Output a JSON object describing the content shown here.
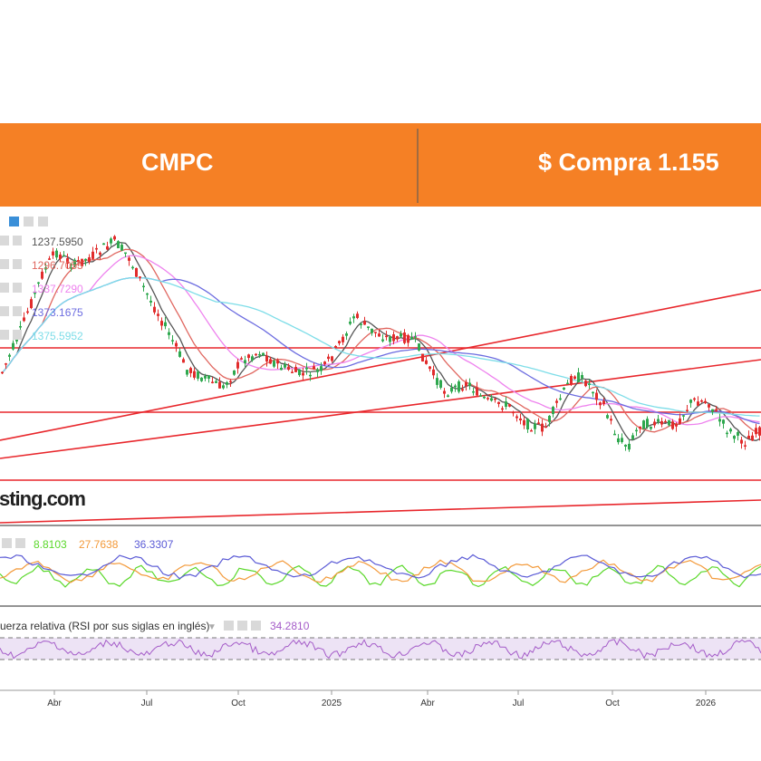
{
  "banner": {
    "title": "CMPC",
    "price": "$ Compra 1.155"
  },
  "watermark": "sting.com",
  "colors": {
    "banner": "#F58025",
    "up": "#2FA84F",
    "down": "#E12C2C",
    "ma1": "#555555",
    "ma2": "#E0665F",
    "ma3": "#EE82EE",
    "ma4": "#6C6CE0",
    "ma5": "#7DDDE8",
    "level": "#E8272C",
    "adx": "#5AD82A",
    "di_plus": "#F39A3A",
    "di_minus": "#5B5BD6",
    "rsi": "#A45BC8"
  },
  "chart_data": [
    {
      "type": "candlestick",
      "title": "",
      "indicator_values": [
        "1237.5950",
        "1296.7055",
        "1337.7290",
        "1373.1675",
        "1375.5952"
      ],
      "xlabel": "",
      "ylabel": "",
      "x_ticks": [
        "Abr",
        "Jul",
        "Oct",
        "2025",
        "Abr",
        "Jul",
        "Oct",
        "2026"
      ],
      "grid": false,
      "notes": "Price candles with five moving averages, horizontal support/resistance lines and rising trendlines"
    },
    {
      "type": "line",
      "title": "",
      "series": [
        {
          "name": "",
          "value_label": "8.8103"
        },
        {
          "name": "",
          "value_label": "27.7638"
        },
        {
          "name": "",
          "value_label": "36.3307"
        }
      ]
    },
    {
      "type": "line",
      "title": "uerza relativa (RSI por sus siglas en inglés)",
      "series": [
        {
          "name": "",
          "value_label": "34.2810"
        }
      ],
      "bands": [
        30,
        70
      ]
    }
  ]
}
